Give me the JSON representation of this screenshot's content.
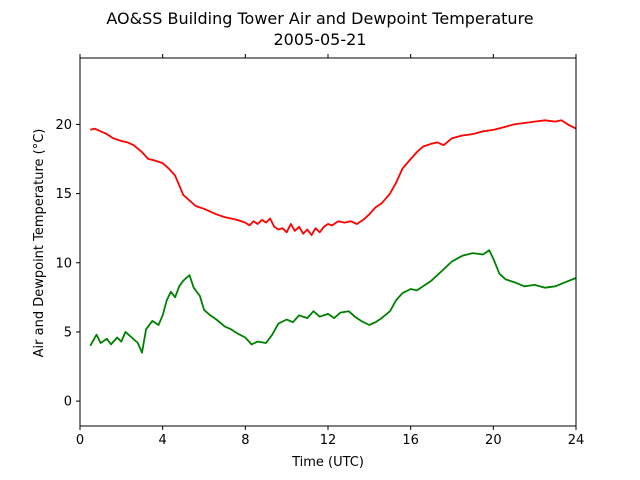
{
  "chart_data": {
    "type": "line",
    "title": "AO&SS Building Tower Air and Dewpoint Temperature",
    "subtitle": "2005-05-21",
    "xlabel": "Time (UTC)",
    "ylabel": "Air and Dewpoint Temperature (°C)",
    "xlim": [
      0,
      24
    ],
    "ylim": [
      -1.8,
      24.8
    ],
    "xticks": [
      0,
      4,
      8,
      12,
      16,
      20,
      24
    ],
    "yticks": [
      0,
      5,
      10,
      15,
      20
    ],
    "grid": false,
    "legend": "none",
    "series": [
      {
        "color": "#ff0000",
        "x": [
          0.5,
          0.7,
          1.0,
          1.3,
          1.6,
          2.0,
          2.3,
          2.6,
          3.0,
          3.3,
          3.6,
          4.0,
          4.3,
          4.6,
          4.8,
          5.0,
          5.3,
          5.6,
          6.0,
          6.3,
          6.6,
          7.0,
          7.3,
          7.6,
          8.0,
          8.2,
          8.4,
          8.6,
          8.8,
          9.0,
          9.2,
          9.4,
          9.6,
          9.8,
          10.0,
          10.2,
          10.4,
          10.6,
          10.8,
          11.0,
          11.2,
          11.4,
          11.6,
          11.8,
          12.0,
          12.2,
          12.5,
          12.8,
          13.1,
          13.4,
          13.7,
          14.0,
          14.3,
          14.6,
          15.0,
          15.3,
          15.6,
          16.0,
          16.3,
          16.6,
          17.0,
          17.3,
          17.6,
          18.0,
          18.5,
          19.0,
          19.5,
          20.0,
          20.5,
          21.0,
          21.5,
          22.0,
          22.5,
          23.0,
          23.3,
          23.6,
          24.0
        ],
        "values": [
          19.6,
          19.7,
          19.5,
          19.3,
          19.0,
          18.8,
          18.7,
          18.5,
          18.0,
          17.5,
          17.4,
          17.2,
          16.8,
          16.3,
          15.6,
          14.9,
          14.5,
          14.1,
          13.9,
          13.7,
          13.5,
          13.3,
          13.2,
          13.1,
          12.9,
          12.7,
          13.0,
          12.8,
          13.1,
          12.9,
          13.2,
          12.6,
          12.4,
          12.5,
          12.2,
          12.8,
          12.3,
          12.6,
          12.1,
          12.4,
          12.0,
          12.5,
          12.2,
          12.6,
          12.8,
          12.7,
          13.0,
          12.9,
          13.0,
          12.8,
          13.1,
          13.5,
          14.0,
          14.3,
          15.0,
          15.8,
          16.8,
          17.5,
          18.0,
          18.4,
          18.6,
          18.7,
          18.5,
          19.0,
          19.2,
          19.3,
          19.5,
          19.6,
          19.8,
          20.0,
          20.1,
          20.2,
          20.3,
          20.2,
          20.3,
          20.0,
          19.7
        ]
      },
      {
        "color": "#008000",
        "x": [
          0.5,
          0.8,
          1.0,
          1.3,
          1.5,
          1.8,
          2.0,
          2.2,
          2.5,
          2.8,
          3.0,
          3.2,
          3.5,
          3.8,
          4.0,
          4.2,
          4.4,
          4.6,
          4.8,
          5.0,
          5.3,
          5.5,
          5.8,
          6.0,
          6.3,
          6.6,
          7.0,
          7.3,
          7.6,
          8.0,
          8.3,
          8.6,
          9.0,
          9.3,
          9.6,
          10.0,
          10.3,
          10.6,
          11.0,
          11.3,
          11.6,
          12.0,
          12.3,
          12.6,
          13.0,
          13.3,
          13.6,
          14.0,
          14.3,
          14.6,
          15.0,
          15.3,
          15.6,
          16.0,
          16.3,
          16.6,
          17.0,
          17.5,
          18.0,
          18.5,
          19.0,
          19.5,
          19.8,
          20.0,
          20.3,
          20.6,
          21.0,
          21.5,
          22.0,
          22.5,
          23.0,
          23.5,
          24.0
        ],
        "values": [
          4.0,
          4.8,
          4.2,
          4.5,
          4.1,
          4.6,
          4.3,
          5.0,
          4.6,
          4.2,
          3.5,
          5.2,
          5.8,
          5.5,
          6.2,
          7.3,
          7.9,
          7.5,
          8.3,
          8.7,
          9.1,
          8.2,
          7.6,
          6.6,
          6.2,
          5.9,
          5.4,
          5.2,
          4.9,
          4.6,
          4.1,
          4.3,
          4.2,
          4.8,
          5.6,
          5.9,
          5.7,
          6.2,
          6.0,
          6.5,
          6.1,
          6.3,
          6.0,
          6.4,
          6.5,
          6.1,
          5.8,
          5.5,
          5.7,
          6.0,
          6.5,
          7.3,
          7.8,
          8.1,
          8.0,
          8.3,
          8.7,
          9.4,
          10.1,
          10.5,
          10.7,
          10.6,
          10.9,
          10.3,
          9.2,
          8.8,
          8.6,
          8.3,
          8.4,
          8.2,
          8.3,
          8.6,
          8.9
        ]
      }
    ]
  }
}
